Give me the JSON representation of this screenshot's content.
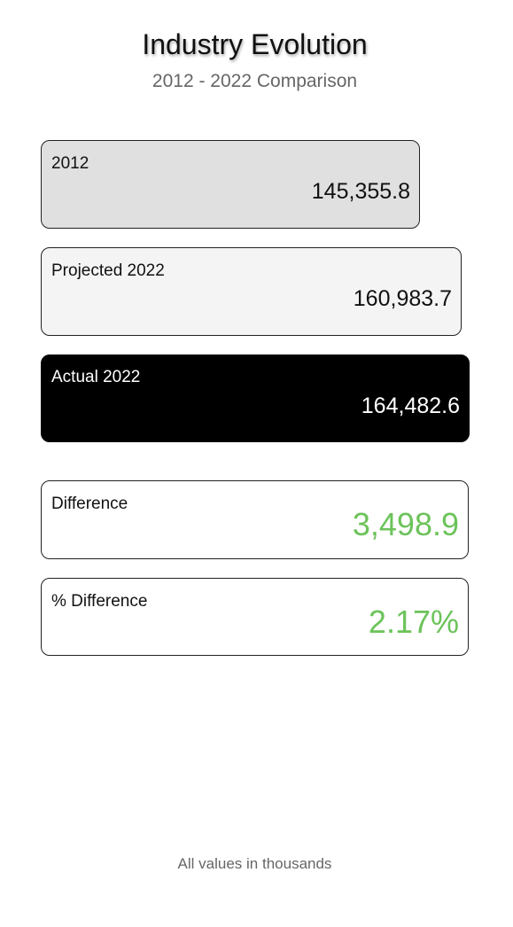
{
  "header": {
    "title": "Industry Evolution",
    "subtitle": "2012 - 2022 Comparison"
  },
  "cards": {
    "base_2012": {
      "label": "2012",
      "value": "145,355.8"
    },
    "projected_2022": {
      "label": "Projected 2022",
      "value": "160,983.7"
    },
    "actual_2022": {
      "label": "Actual 2022",
      "value": "164,482.6"
    }
  },
  "summary": {
    "difference": {
      "label": "Difference",
      "value": "3,498.9"
    },
    "pct_difference": {
      "label": "% Difference",
      "value": "2.17%"
    }
  },
  "footer": {
    "note": "All values in thousands"
  },
  "colors": {
    "positive": "#6cc35a",
    "actual_background": "#000000",
    "base_background": "#e0e0e0",
    "projected_background": "#f4f4f4"
  }
}
